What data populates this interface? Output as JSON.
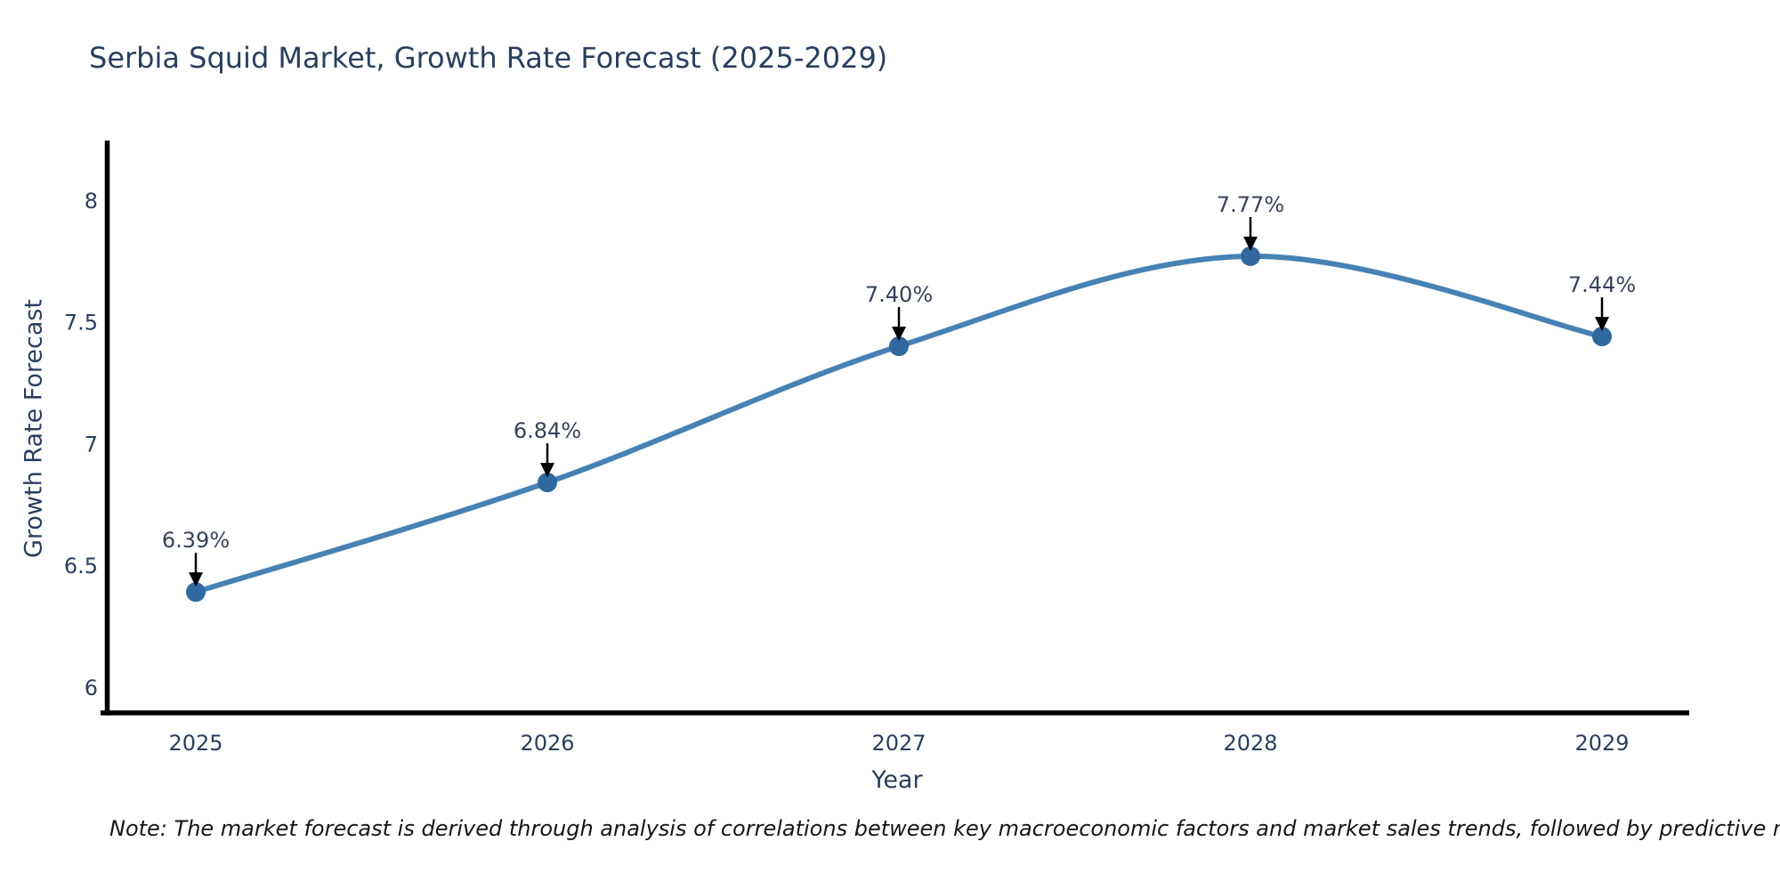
{
  "title": "Serbia Squid Market, Growth Rate Forecast (2025-2029)",
  "note": "Note: The market forecast is derived through analysis of correlations between key macroeconomic factors and market sales trends, followed by predictive modeling to project future sales",
  "chart_data": {
    "type": "line",
    "title": "Serbia Squid Market, Growth Rate Forecast (2025-2029)",
    "xlabel": "Year",
    "ylabel": "Growth Rate Forecast",
    "x": [
      2025,
      2026,
      2027,
      2028,
      2029
    ],
    "series": [
      {
        "name": "Growth Rate Forecast",
        "values": [
          6.39,
          6.84,
          7.4,
          7.77,
          7.44
        ],
        "point_labels": [
          "6.39%",
          "6.84%",
          "7.40%",
          "7.77%",
          "7.44%"
        ]
      }
    ],
    "x_tick_labels": [
      "2025",
      "2026",
      "2027",
      "2028",
      "2029"
    ],
    "y_ticks": [
      {
        "value": 8,
        "label": "8"
      },
      {
        "value": 7.5,
        "label": "7.5"
      },
      {
        "value": 7,
        "label": "7"
      },
      {
        "value": 6.5,
        "label": "6.5"
      },
      {
        "value": 6,
        "label": "6"
      }
    ],
    "ylim": [
      5.89,
      8.25
    ],
    "grid": false,
    "legend": false,
    "line_shape": "spline",
    "annotations_have_arrows": true,
    "colors": {
      "line": "#4682b4",
      "marker": "#30689f",
      "axis_line": "#000000",
      "arrow": "#000000",
      "tick_text": "#2a3f5f",
      "annotation_text": "#37425a",
      "title_text": "#2a3f5f",
      "note_text": "#161616",
      "background": "#ffffff"
    }
  }
}
